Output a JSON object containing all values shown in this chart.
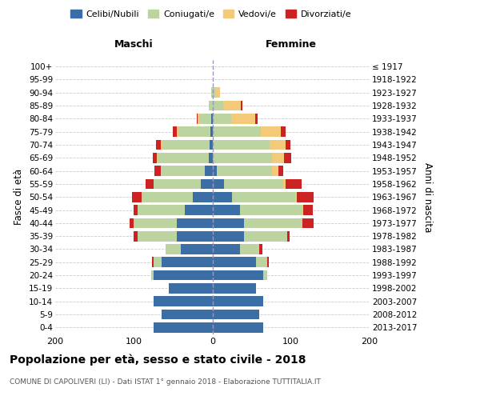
{
  "age_groups": [
    "0-4",
    "5-9",
    "10-14",
    "15-19",
    "20-24",
    "25-29",
    "30-34",
    "35-39",
    "40-44",
    "45-49",
    "50-54",
    "55-59",
    "60-64",
    "65-69",
    "70-74",
    "75-79",
    "80-84",
    "85-89",
    "90-94",
    "95-99",
    "100+"
  ],
  "birth_years": [
    "2013-2017",
    "2008-2012",
    "2003-2007",
    "1998-2002",
    "1993-1997",
    "1988-1992",
    "1983-1987",
    "1978-1982",
    "1973-1977",
    "1968-1972",
    "1963-1967",
    "1958-1962",
    "1953-1957",
    "1948-1952",
    "1943-1947",
    "1938-1942",
    "1933-1937",
    "1928-1932",
    "1923-1927",
    "1918-1922",
    "≤ 1917"
  ],
  "colors": {
    "celibi": "#3b6ea5",
    "coniugati": "#bcd4a0",
    "vedovi": "#f5c97a",
    "divorziati": "#cc2222"
  },
  "maschi": {
    "celibi": [
      75,
      65,
      75,
      55,
      75,
      65,
      40,
      45,
      45,
      35,
      25,
      15,
      10,
      5,
      4,
      3,
      2,
      0,
      0,
      0,
      0
    ],
    "coniugati": [
      0,
      0,
      0,
      0,
      3,
      10,
      20,
      50,
      55,
      60,
      65,
      60,
      55,
      65,
      60,
      40,
      15,
      5,
      2,
      0,
      0
    ],
    "vedovi": [
      0,
      0,
      0,
      0,
      0,
      0,
      0,
      0,
      0,
      0,
      0,
      0,
      1,
      1,
      2,
      2,
      2,
      0,
      0,
      0,
      0
    ],
    "divorziati": [
      0,
      0,
      0,
      0,
      0,
      2,
      0,
      5,
      5,
      5,
      12,
      10,
      8,
      5,
      6,
      5,
      1,
      0,
      0,
      0,
      0
    ]
  },
  "femmine": {
    "celibi": [
      65,
      60,
      65,
      55,
      65,
      55,
      35,
      40,
      40,
      35,
      25,
      15,
      6,
      1,
      1,
      0,
      0,
      0,
      0,
      0,
      0
    ],
    "coniugati": [
      0,
      0,
      0,
      0,
      5,
      15,
      25,
      55,
      75,
      80,
      80,
      75,
      70,
      75,
      72,
      62,
      24,
      14,
      4,
      0,
      0
    ],
    "vedovi": [
      0,
      0,
      0,
      0,
      0,
      0,
      0,
      0,
      0,
      1,
      2,
      3,
      8,
      15,
      20,
      25,
      30,
      22,
      6,
      1,
      1
    ],
    "divorziati": [
      0,
      0,
      0,
      0,
      0,
      2,
      4,
      3,
      14,
      12,
      22,
      20,
      6,
      9,
      6,
      6,
      4,
      2,
      0,
      0,
      0
    ]
  },
  "title": "Popolazione per età, sesso e stato civile - 2018",
  "subtitle": "COMUNE DI CAPOLIVERI (LI) - Dati ISTAT 1° gennaio 2018 - Elaborazione TUTTITALIA.IT",
  "ylabel_left": "Fasce di età",
  "ylabel_right": "Anni di nascita",
  "xlabel_maschi": "Maschi",
  "xlabel_femmine": "Femmine",
  "xlim": 200,
  "legend_labels": [
    "Celibi/Nubili",
    "Coniugati/e",
    "Vedovi/e",
    "Divorziati/e"
  ],
  "background_color": "#ffffff",
  "grid_color": "#cccccc"
}
